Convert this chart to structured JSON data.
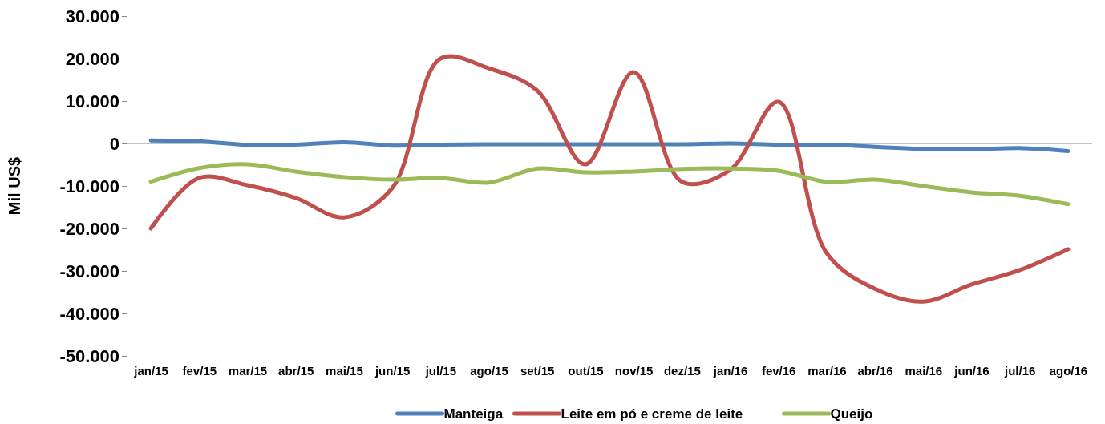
{
  "chart_data": {
    "type": "line",
    "ylabel": "Mil US$",
    "categories": [
      "jan/15",
      "fev/15",
      "mar/15",
      "abr/15",
      "mai/15",
      "jun/15",
      "jul/15",
      "ago/15",
      "set/15",
      "out/15",
      "nov/15",
      "dez/15",
      "jan/16",
      "fev/16",
      "mar/16",
      "abr/16",
      "mai/16",
      "jun/16",
      "jul/16",
      "ago/16"
    ],
    "series": [
      {
        "name": "Manteiga",
        "color": "#4f81bd",
        "values": [
          700,
          500,
          -300,
          -300,
          300,
          -500,
          -300,
          -200,
          -200,
          -200,
          -200,
          -200,
          0,
          -300,
          -300,
          -800,
          -1300,
          -1400,
          -1100,
          -1800
        ]
      },
      {
        "name": "Leite em pó e creme de leite",
        "color": "#c0504d",
        "values": [
          -20000,
          -8100,
          -9800,
          -12800,
          -17400,
          -10500,
          20000,
          17700,
          12500,
          -4900,
          16800,
          -9000,
          -6200,
          9800,
          -25800,
          -34200,
          -37200,
          -33200,
          -29800,
          -24900
        ]
      },
      {
        "name": "Queijo",
        "color": "#9bbb59",
        "values": [
          -9000,
          -5800,
          -4900,
          -6600,
          -7900,
          -8500,
          -8100,
          -9200,
          -5900,
          -6800,
          -6600,
          -6000,
          -5900,
          -6400,
          -9000,
          -8500,
          -10000,
          -11500,
          -12300,
          -14300
        ]
      }
    ],
    "ylim": [
      -50000,
      30000
    ],
    "yticks": [
      {
        "value": -50000,
        "label": "-50.000"
      },
      {
        "value": -40000,
        "label": "-40.000"
      },
      {
        "value": -30000,
        "label": "-30.000"
      },
      {
        "value": -20000,
        "label": "-20.000"
      },
      {
        "value": -10000,
        "label": "-10.000"
      },
      0,
      {
        "value": 10000,
        "label": "10.000"
      },
      {
        "value": 20000,
        "label": "20.000"
      },
      {
        "value": 30000,
        "label": "30.000"
      }
    ],
    "legend": "bottom",
    "marker": "none",
    "line_style": "solid"
  }
}
